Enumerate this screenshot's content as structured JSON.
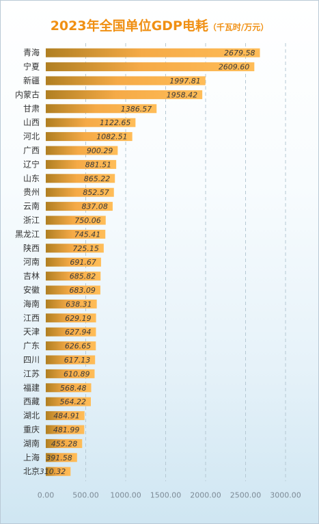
{
  "chart_data": {
    "type": "bar",
    "orientation": "horizontal",
    "title": "2023年全国单位GDP电耗",
    "unit": "（千瓦时/万元）",
    "categories": [
      "青海",
      "宁夏",
      "新疆",
      "内蒙古",
      "甘肃",
      "山西",
      "河北",
      "广西",
      "辽宁",
      "山东",
      "贵州",
      "云南",
      "浙江",
      "黑龙江",
      "陕西",
      "河南",
      "吉林",
      "安徽",
      "海南",
      "江西",
      "天津",
      "广东",
      "四川",
      "江苏",
      "福建",
      "西藏",
      "湖北",
      "重庆",
      "湖南",
      "上海",
      "北京"
    ],
    "values": [
      2679.58,
      2609.6,
      1997.81,
      1958.42,
      1386.57,
      1122.65,
      1082.51,
      900.29,
      881.51,
      865.22,
      852.57,
      837.08,
      750.06,
      745.41,
      725.15,
      691.67,
      685.82,
      683.09,
      638.31,
      629.19,
      627.94,
      626.65,
      617.13,
      610.89,
      568.48,
      564.22,
      484.91,
      481.99,
      455.28,
      391.58,
      310.32
    ],
    "value_labels": [
      "2679.58",
      "2609.60",
      "1997.81",
      "1958.42",
      "1386.57",
      "1122.65",
      "1082.51",
      "900.29",
      "881.51",
      "865.22",
      "852.57",
      "837.08",
      "750.06",
      "745.41",
      "725.15",
      "691.67",
      "685.82",
      "683.09",
      "638.31",
      "629.19",
      "627.94",
      "626.65",
      "617.13",
      "610.89",
      "568.48",
      "564.22",
      "484.91",
      "481.99",
      "455.28",
      "391.58",
      "310.32"
    ],
    "xlim": [
      0,
      3000
    ],
    "xticks": [
      "0.00",
      "500.00",
      "1000.00",
      "1500.00",
      "2000.00",
      "2500.00",
      "3000.00"
    ],
    "grid": true,
    "colors": {
      "bar_start": "#b07f22",
      "bar_end": "#ffbd58",
      "title": "#f08f12"
    }
  }
}
